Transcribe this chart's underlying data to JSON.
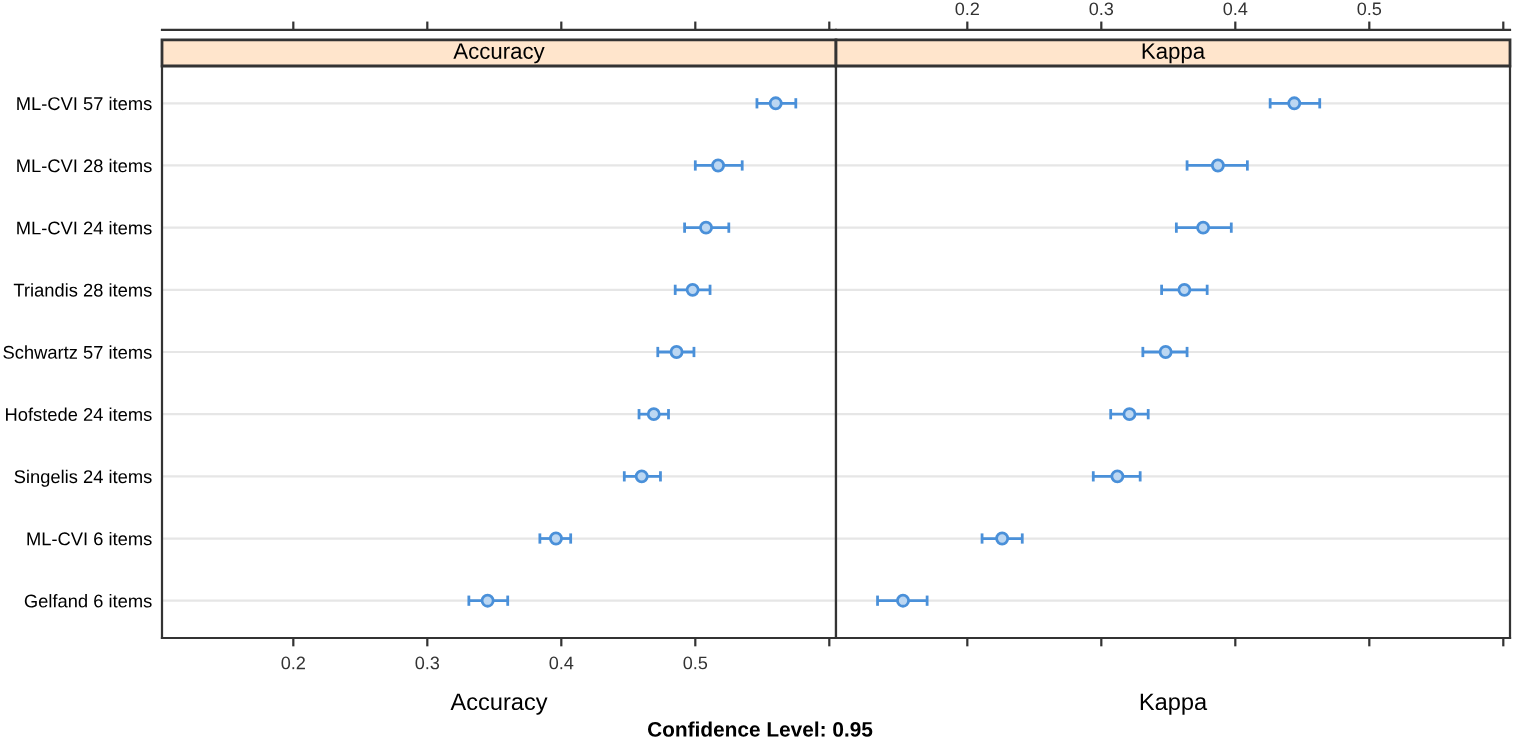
{
  "chart_data": [
    {
      "type": "scatter",
      "orientation": "horizontal",
      "title": "Accuracy",
      "xlabel": "Accuracy",
      "categories": [
        "ML-CVI 57 items",
        "ML-CVI 28 items",
        "ML-CVI 24 items",
        "Triandis 28 items",
        "Schwartz 57 items",
        "Hofstede 24 items",
        "Singelis 24 items",
        "ML-CVI 6 items",
        "Gelfand 6 items"
      ],
      "series": [
        {
          "color": "#4a90d9",
          "values": [
            0.56,
            0.517,
            0.508,
            0.498,
            0.486,
            0.469,
            0.46,
            0.396,
            0.345
          ],
          "errors": [
            [
              0.546,
              0.575
            ],
            [
              0.5,
              0.535
            ],
            [
              0.492,
              0.525
            ],
            [
              0.485,
              0.511
            ],
            [
              0.472,
              0.499
            ],
            [
              0.458,
              0.48
            ],
            [
              0.447,
              0.474
            ],
            [
              0.384,
              0.407
            ],
            [
              0.331,
              0.36
            ]
          ]
        }
      ],
      "xlim": [
        0.102,
        0.605
      ],
      "xticks": [
        0.2,
        0.3,
        0.4,
        0.5,
        {
          "value": 0.6,
          "label": null
        }
      ],
      "grid": "y",
      "marker": "circle",
      "legend": false,
      "annotations": [
        "Confidence Level: 0.95"
      ]
    },
    {
      "type": "scatter",
      "orientation": "horizontal",
      "title": "Kappa",
      "xlabel": "Kappa",
      "categories": [
        null,
        null,
        null,
        null,
        null,
        null,
        null,
        null,
        null
      ],
      "series": [
        {
          "axis": "x2",
          "color": "#4a90d9",
          "values": [
            0.444,
            0.387,
            0.376,
            0.362,
            0.348,
            0.321,
            0.312,
            0.226,
            0.152
          ],
          "errors": [
            [
              0.426,
              0.463
            ],
            [
              0.364,
              0.409
            ],
            [
              0.356,
              0.397
            ],
            [
              0.345,
              0.379
            ],
            [
              0.331,
              0.364
            ],
            [
              0.307,
              0.335
            ],
            [
              0.294,
              0.329
            ],
            [
              0.211,
              0.241
            ],
            [
              0.133,
              0.17
            ]
          ]
        }
      ],
      "x2lim": [
        0.102,
        0.605
      ],
      "x2ticks": [
        0.2,
        0.3,
        0.4,
        0.5,
        {
          "value": 0.6,
          "label": null
        }
      ],
      "grid": "y",
      "marker": "circle",
      "legend": false
    }
  ]
}
